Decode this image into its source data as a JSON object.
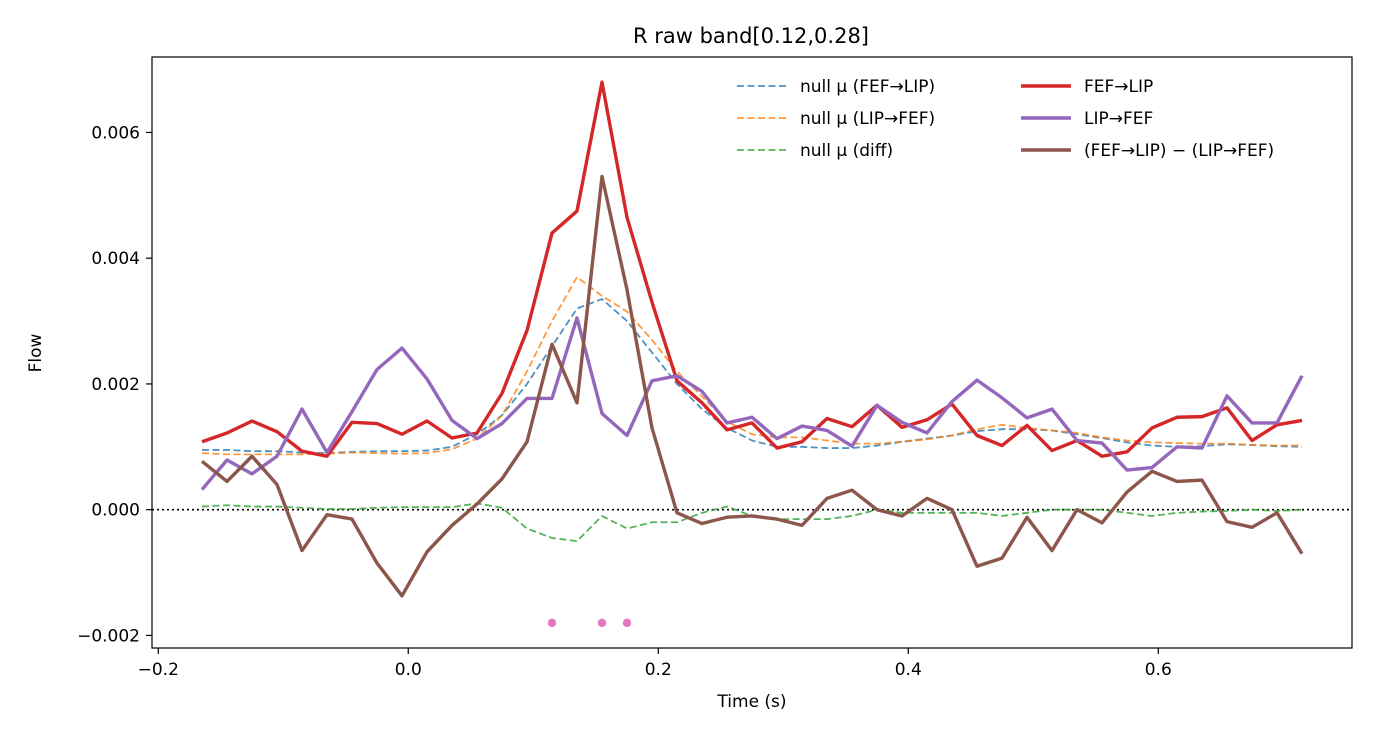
{
  "chart_data": {
    "type": "line",
    "title": "R raw   band[0.12,0.28]",
    "xlabel": "Time (s)",
    "ylabel": "Flow",
    "xlim": [
      -0.205,
      0.755
    ],
    "ylim": [
      -0.0022,
      0.0072
    ],
    "xticks": [
      -0.2,
      0.0,
      0.2,
      0.4,
      0.6
    ],
    "xtick_labels": [
      "−0.2",
      "0.0",
      "0.2",
      "0.4",
      "0.6"
    ],
    "yticks": [
      -0.002,
      0.0,
      0.002,
      0.004,
      0.006
    ],
    "ytick_labels": [
      "−0.002",
      "0.000",
      "0.002",
      "0.004",
      "0.006"
    ],
    "grid": false,
    "legend_position": "top-right",
    "zero_line": {
      "y": 0.0,
      "style": "dotted",
      "color": "#000000"
    },
    "x": [
      -0.165,
      -0.145,
      -0.125,
      -0.105,
      -0.085,
      -0.065,
      -0.045,
      -0.025,
      -0.005,
      0.015,
      0.035,
      0.055,
      0.075,
      0.095,
      0.115,
      0.135,
      0.155,
      0.175,
      0.195,
      0.215,
      0.235,
      0.255,
      0.275,
      0.295,
      0.315,
      0.335,
      0.355,
      0.375,
      0.395,
      0.415,
      0.435,
      0.455,
      0.475,
      0.495,
      0.515,
      0.535,
      0.555,
      0.575,
      0.595,
      0.615,
      0.635,
      0.655,
      0.675,
      0.695,
      0.715
    ],
    "series": [
      {
        "name": "null μ (FEF→LIP)",
        "style": "dashed",
        "color": "#1f77b4",
        "width": 1.8,
        "opacity": 0.8,
        "values": [
          0.00095,
          0.00095,
          0.00093,
          0.00093,
          0.00091,
          0.0009,
          0.00092,
          0.00093,
          0.00093,
          0.00094,
          0.001,
          0.0012,
          0.0015,
          0.002,
          0.0026,
          0.0032,
          0.00335,
          0.003,
          0.0025,
          0.002,
          0.0016,
          0.0013,
          0.0011,
          0.001,
          0.001,
          0.00098,
          0.00098,
          0.00102,
          0.00108,
          0.00113,
          0.00118,
          0.00125,
          0.00128,
          0.00128,
          0.00126,
          0.0012,
          0.00114,
          0.00107,
          0.00102,
          0.001,
          0.00101,
          0.00104,
          0.00103,
          0.00101,
          0.001
        ]
      },
      {
        "name": "null μ (LIP→FEF)",
        "style": "dashed",
        "color": "#ff7f0e",
        "width": 1.8,
        "opacity": 0.8,
        "values": [
          0.0009,
          0.00088,
          0.00088,
          0.00088,
          0.00088,
          0.00089,
          0.00091,
          0.0009,
          0.00089,
          0.0009,
          0.00096,
          0.00113,
          0.0015,
          0.0022,
          0.003,
          0.0037,
          0.0034,
          0.00315,
          0.0027,
          0.0022,
          0.0018,
          0.0014,
          0.0012,
          0.00115,
          0.00115,
          0.0011,
          0.00105,
          0.00105,
          0.00108,
          0.00112,
          0.00118,
          0.00128,
          0.00135,
          0.0013,
          0.00126,
          0.00122,
          0.00115,
          0.0011,
          0.00107,
          0.00106,
          0.00105,
          0.00105,
          0.00103,
          0.00102,
          0.00102
        ]
      },
      {
        "name": "null μ (diff)",
        "style": "dashed",
        "color": "#2ca02c",
        "width": 1.8,
        "opacity": 0.8,
        "values": [
          5e-05,
          7e-05,
          5e-05,
          5e-05,
          3e-05,
          1e-05,
          1e-05,
          3e-05,
          4e-05,
          4e-05,
          4e-05,
          0.0001,
          3e-05,
          -0.0003,
          -0.00045,
          -0.0005,
          -0.0001,
          -0.0003,
          -0.0002,
          -0.0002,
          -5e-05,
          5e-05,
          -0.0001,
          -0.00015,
          -0.00015,
          -0.00015,
          -0.0001,
          0.0,
          -5e-05,
          -5e-05,
          -5e-05,
          -5e-05,
          -0.0001,
          -5e-05,
          0.0,
          0.0,
          0.0,
          -5e-05,
          -0.0001,
          -5e-05,
          -3e-05,
          -2e-05,
          0.0,
          -2e-05,
          0.0
        ]
      },
      {
        "name": "FEF→LIP",
        "style": "solid",
        "color": "#d62728",
        "width": 3.4,
        "opacity": 1,
        "values": [
          0.00108,
          0.00122,
          0.00141,
          0.00124,
          0.00093,
          0.00085,
          0.00139,
          0.00137,
          0.0012,
          0.00141,
          0.00114,
          0.00122,
          0.00185,
          0.00285,
          0.0044,
          0.00475,
          0.0068,
          0.00465,
          0.0033,
          0.00205,
          0.0017,
          0.00127,
          0.00138,
          0.00098,
          0.00108,
          0.00145,
          0.00132,
          0.00166,
          0.00131,
          0.00143,
          0.00168,
          0.00118,
          0.00102,
          0.00134,
          0.00094,
          0.0011,
          0.00085,
          0.00092,
          0.0013,
          0.00147,
          0.00148,
          0.00162,
          0.0011,
          0.00135,
          0.00142
        ]
      },
      {
        "name": "LIP→FEF",
        "style": "solid",
        "color": "#9467bd",
        "width": 3.4,
        "opacity": 1,
        "values": [
          0.00032,
          0.00079,
          0.00057,
          0.00085,
          0.0016,
          0.00091,
          0.00156,
          0.00223,
          0.00257,
          0.00208,
          0.00142,
          0.00113,
          0.00137,
          0.00177,
          0.00177,
          0.00305,
          0.00153,
          0.00118,
          0.00205,
          0.00213,
          0.00188,
          0.00138,
          0.00147,
          0.00113,
          0.00133,
          0.00126,
          0.00101,
          0.00166,
          0.00139,
          0.00122,
          0.00172,
          0.00206,
          0.00178,
          0.00146,
          0.0016,
          0.0011,
          0.00106,
          0.00063,
          0.00067,
          0.001,
          0.00098,
          0.00181,
          0.00138,
          0.00138,
          0.00213
        ]
      },
      {
        "name": "(FEF→LIP) − (LIP→FEF)",
        "style": "solid",
        "color": "#8c564b",
        "width": 3.4,
        "opacity": 1,
        "values": [
          0.00077,
          0.00045,
          0.00085,
          0.0004,
          -0.00065,
          -8e-05,
          -0.00015,
          -0.00085,
          -0.00137,
          -0.00067,
          -0.00025,
          9e-05,
          0.00049,
          0.00108,
          0.00263,
          0.0017,
          0.0053,
          0.0035,
          0.0013,
          -5e-05,
          -0.00022,
          -0.00012,
          -0.0001,
          -0.00015,
          -0.00025,
          0.00018,
          0.00031,
          0.0,
          -0.0001,
          0.00018,
          0.0,
          -0.0009,
          -0.00077,
          -0.00012,
          -0.00065,
          0.0,
          -0.00021,
          0.00028,
          0.00061,
          0.00045,
          0.00047,
          -0.00019,
          -0.00028,
          -5e-05,
          -0.0007
        ]
      }
    ],
    "markers": {
      "color": "#e377c2",
      "points": [
        [
          0.115,
          -0.0018
        ],
        [
          0.155,
          -0.0018
        ],
        [
          0.175,
          -0.0018
        ]
      ]
    }
  }
}
